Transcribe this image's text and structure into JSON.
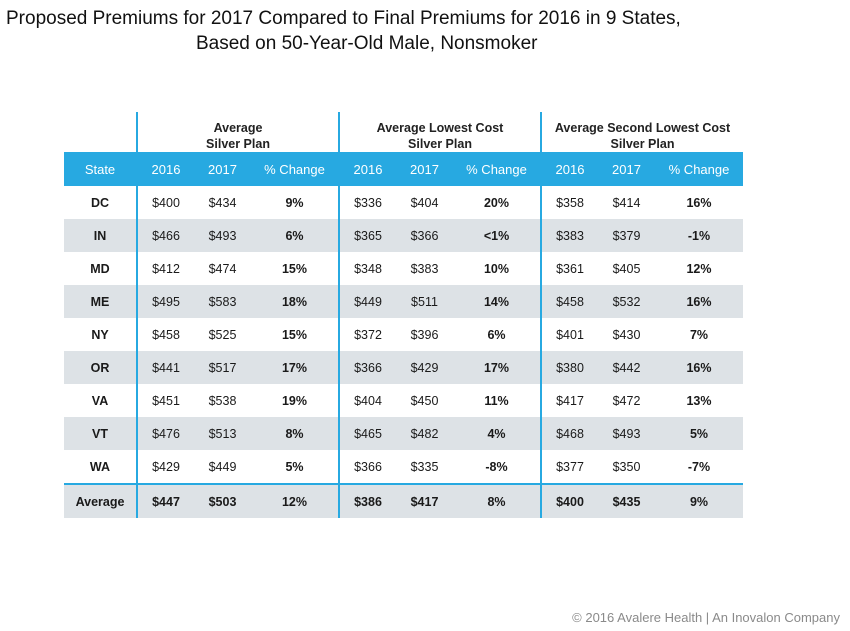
{
  "title_line1": "Proposed Premiums  for 2017 Compared  to Final Premiums  for 2016 in 9 States,",
  "title_line2": "Based on 50-Year-Old Male, Nonsmoker",
  "footer": "© 2016 Avalere Health | An Inovalon  Company",
  "colors": {
    "header_bg": "#27a9e1",
    "alt_row": "#dde2e6"
  },
  "chart_data": {
    "type": "table",
    "column_groups": [
      {
        "line1": "Average",
        "line2": "Silver Plan"
      },
      {
        "line1": "Average Lowest Cost",
        "line2": "Silver Plan"
      },
      {
        "line1": "Average Second Lowest Cost",
        "line2": "Silver Plan"
      }
    ],
    "headers": [
      "State",
      "2016",
      "2017",
      "% Change",
      "2016",
      "2017",
      "% Change",
      "2016",
      "2017",
      "% Change"
    ],
    "rows": [
      [
        "DC",
        "$400",
        "$434",
        "9%",
        "$336",
        "$404",
        "20%",
        "$358",
        "$414",
        "16%"
      ],
      [
        "IN",
        "$466",
        "$493",
        "6%",
        "$365",
        "$366",
        "<1%",
        "$383",
        "$379",
        "-1%"
      ],
      [
        "MD",
        "$412",
        "$474",
        "15%",
        "$348",
        "$383",
        "10%",
        "$361",
        "$405",
        "12%"
      ],
      [
        "ME",
        "$495",
        "$583",
        "18%",
        "$449",
        "$511",
        "14%",
        "$458",
        "$532",
        "16%"
      ],
      [
        "NY",
        "$458",
        "$525",
        "15%",
        "$372",
        "$396",
        "6%",
        "$401",
        "$430",
        "7%"
      ],
      [
        "OR",
        "$441",
        "$517",
        "17%",
        "$366",
        "$429",
        "17%",
        "$380",
        "$442",
        "16%"
      ],
      [
        "VA",
        "$451",
        "$538",
        "19%",
        "$404",
        "$450",
        "11%",
        "$417",
        "$472",
        "13%"
      ],
      [
        "VT",
        "$476",
        "$513",
        "8%",
        "$465",
        "$482",
        "4%",
        "$468",
        "$493",
        "5%"
      ],
      [
        "WA",
        "$429",
        "$449",
        "5%",
        "$366",
        "$335",
        "-8%",
        "$377",
        "$350",
        "-7%"
      ]
    ],
    "average_row": [
      "Average",
      "$447",
      "$503",
      "12%",
      "$386",
      "$417",
      "8%",
      "$400",
      "$435",
      "9%"
    ]
  }
}
